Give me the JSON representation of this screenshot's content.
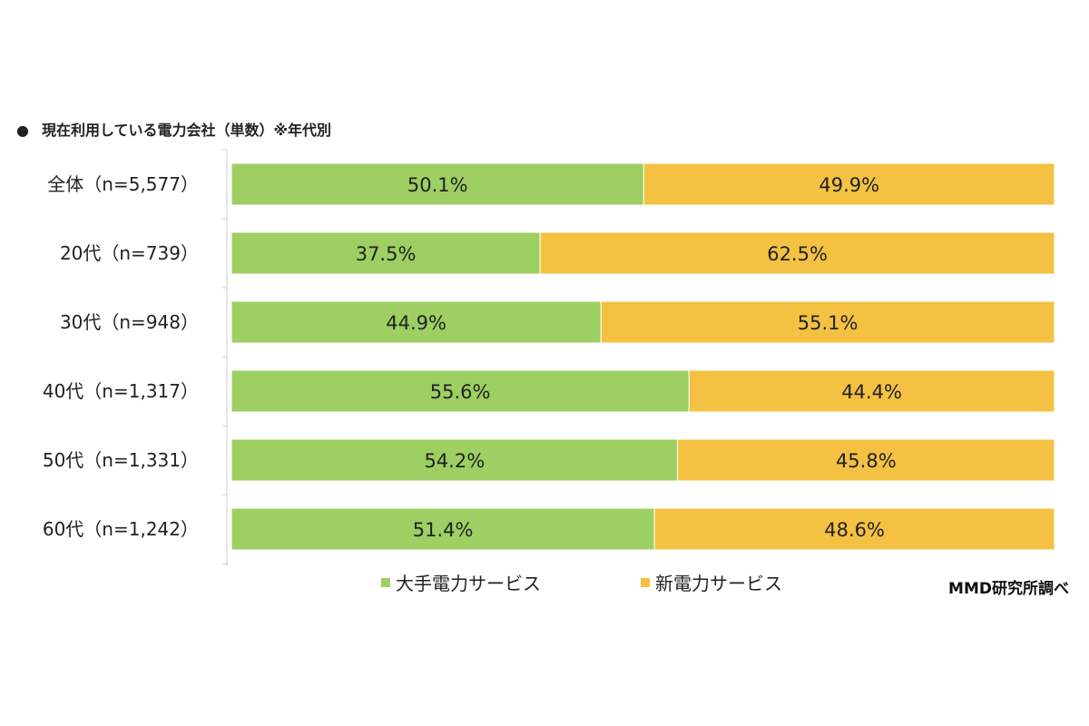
{
  "title": "現在利用している電力会社（単数）※年代別",
  "title_bullet": "●",
  "source_note": "MMD研究所調べ",
  "colors": {
    "major": "#9dcf62",
    "new": "#f4c142",
    "axis": "#cfcfcf",
    "label_text": "#222222"
  },
  "chart_data": {
    "type": "bar",
    "orientation": "horizontal",
    "stacked": "100%",
    "categories": [
      "全体（n=5,577）",
      "20代（n=739）",
      "30代（n=948）",
      "40代（n=1,317）",
      "50代（n=1,331）",
      "60代（n=1,242）"
    ],
    "series": [
      {
        "name": "大手電力サービス",
        "values": [
          50.1,
          37.5,
          44.9,
          55.6,
          54.2,
          51.4
        ],
        "labels": [
          "50.1%",
          "37.5%",
          "44.9%",
          "55.6%",
          "54.2%",
          "51.4%"
        ],
        "color": "#9dcf62"
      },
      {
        "name": "新電力サービス",
        "values": [
          49.9,
          62.5,
          55.1,
          44.4,
          45.8,
          48.6
        ],
        "labels": [
          "49.9%",
          "62.5%",
          "55.1%",
          "44.4%",
          "45.8%",
          "48.6%"
        ],
        "color": "#f4c142"
      }
    ],
    "xlim": [
      0,
      100
    ],
    "grid": false,
    "legend_position": "bottom"
  }
}
